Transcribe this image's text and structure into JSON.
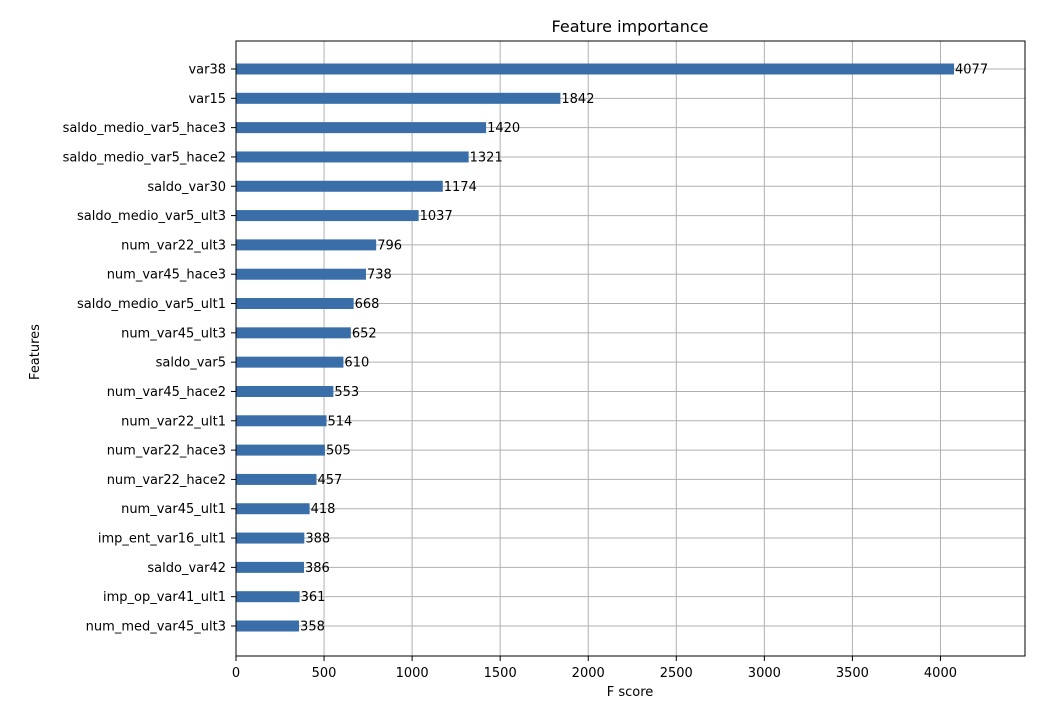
{
  "chart_data": {
    "type": "bar",
    "orientation": "horizontal",
    "title": "Feature importance",
    "xlabel": "F score",
    "ylabel": "Features",
    "xlim": [
      0,
      4480
    ],
    "xticks": [
      0,
      500,
      1000,
      1500,
      2000,
      2500,
      3000,
      3500,
      4000
    ],
    "grid": true,
    "categories": [
      "var38",
      "var15",
      "saldo_medio_var5_hace3",
      "saldo_medio_var5_hace2",
      "saldo_var30",
      "saldo_medio_var5_ult3",
      "num_var22_ult3",
      "num_var45_hace3",
      "saldo_medio_var5_ult1",
      "num_var45_ult3",
      "saldo_var5",
      "num_var45_hace2",
      "num_var22_ult1",
      "num_var22_hace3",
      "num_var22_hace2",
      "num_var45_ult1",
      "imp_ent_var16_ult1",
      "saldo_var42",
      "imp_op_var41_ult1",
      "num_med_var45_ult3"
    ],
    "values": [
      4077,
      1842,
      1420,
      1321,
      1174,
      1037,
      796,
      738,
      668,
      652,
      610,
      553,
      514,
      505,
      457,
      418,
      388,
      386,
      361,
      358
    ],
    "bar_color": "#3a6ea8",
    "grid_color": "#b0b0b0"
  }
}
